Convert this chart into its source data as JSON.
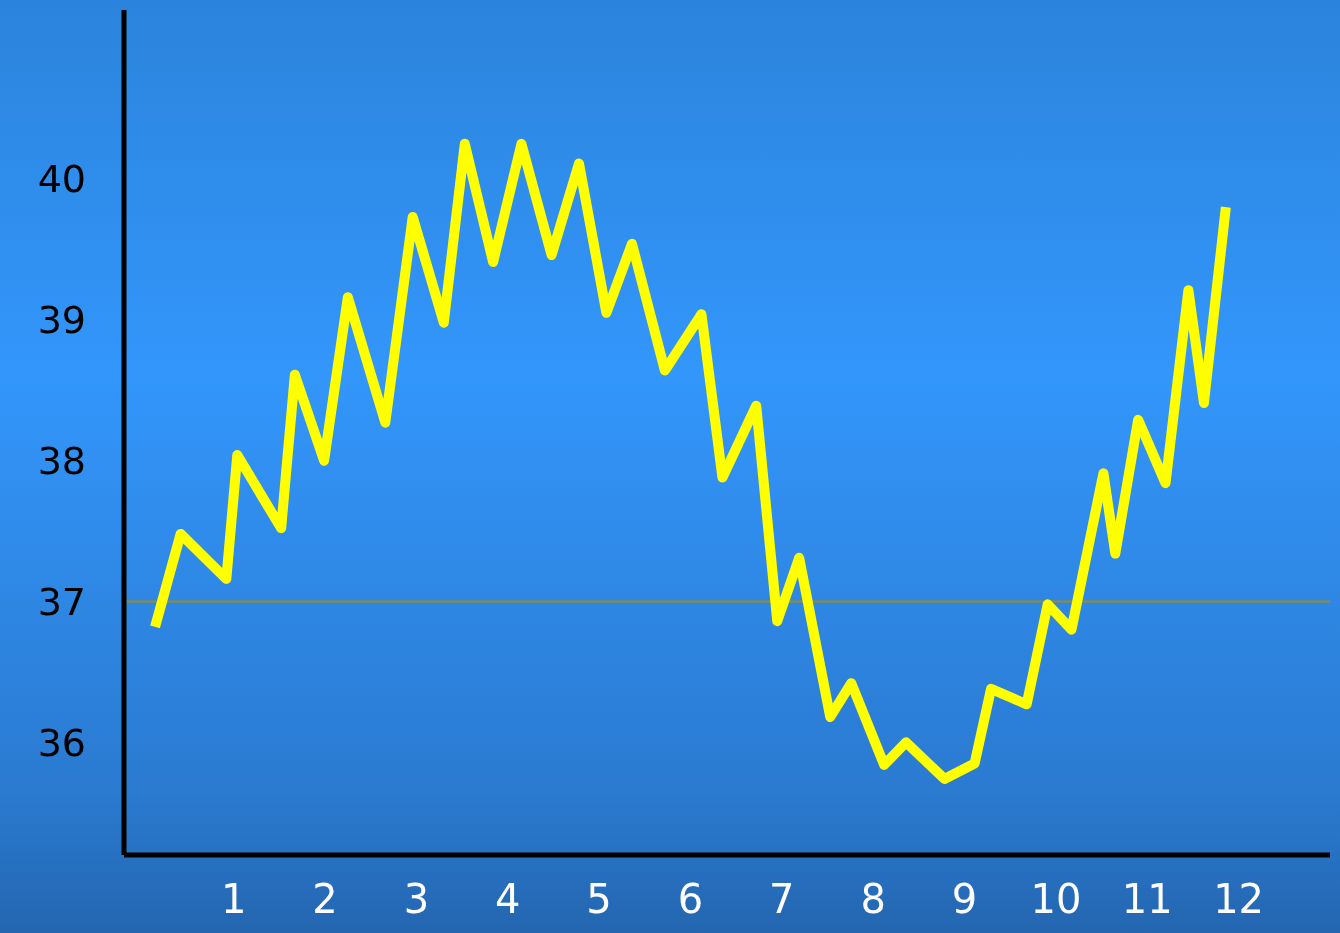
{
  "chart_data": {
    "type": "line",
    "x": [
      0.14,
      0.42,
      0.92,
      1.04,
      1.52,
      1.67,
      1.99,
      2.25,
      2.66,
      2.96,
      3.3,
      3.53,
      3.84,
      4.15,
      4.48,
      4.78,
      5.08,
      5.36,
      5.72,
      6.12,
      6.35,
      6.72,
      6.95,
      7.19,
      7.53,
      7.76,
      8.12,
      8.36,
      8.78,
      9.11,
      9.29,
      9.68,
      9.91,
      10.17,
      10.52,
      10.65,
      10.9,
      11.2,
      11.45,
      11.62,
      11.86
    ],
    "series": [
      {
        "color": "#ffff00",
        "values": [
          36.82,
          37.48,
          37.16,
          38.04,
          37.52,
          38.61,
          38.0,
          39.16,
          38.27,
          39.73,
          38.98,
          40.25,
          39.41,
          40.25,
          39.46,
          40.11,
          39.05,
          39.54,
          38.64,
          39.04,
          37.88,
          38.39,
          36.86,
          37.31,
          36.18,
          36.42,
          35.84,
          36.0,
          35.74,
          35.85,
          36.38,
          36.27,
          36.98,
          36.8,
          37.91,
          37.34,
          38.29,
          37.84,
          39.21,
          38.41,
          39.8
        ]
      }
    ],
    "xlim": [
      -0.2,
      13
    ],
    "xticks": [
      1,
      2,
      3,
      4,
      5,
      6,
      7,
      8,
      9,
      10,
      11,
      12
    ],
    "ylim": [
      35.2,
      41.2
    ],
    "yticks": [
      36,
      37,
      38,
      39,
      40
    ],
    "ref_lines": [
      {
        "axis": "y",
        "value": 37,
        "color": "#a08a20"
      }
    ],
    "grid": false,
    "legend": false,
    "marker": "none",
    "line_style": "solid"
  }
}
